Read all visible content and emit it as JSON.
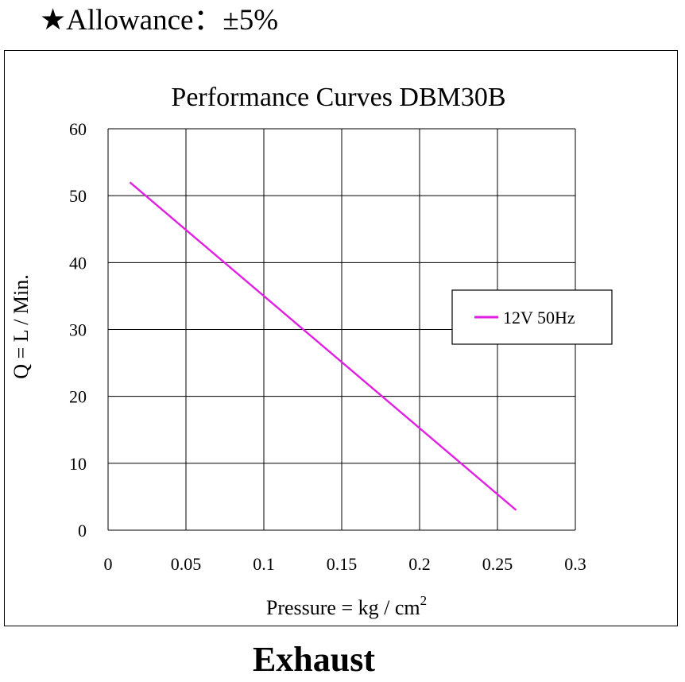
{
  "header": {
    "allowance_text": "★Allowance：±5%"
  },
  "footer": {
    "mode_label": "Exhaust"
  },
  "colors": {
    "series": "#e21ee2",
    "grid": "#000000",
    "background": "#ffffff"
  },
  "chart_data": {
    "type": "line",
    "title": "Performance  Curves  DBM30B",
    "xlabel": "Pressure = kg / cm",
    "xlabel_superscript": "2",
    "ylabel": "Q = L / Min.",
    "xlim": [
      0,
      0.3
    ],
    "ylim": [
      0,
      60
    ],
    "xticks": [
      0,
      0.05,
      0.1,
      0.15,
      0.2,
      0.25,
      0.3
    ],
    "xtick_labels": [
      "0",
      "0.05",
      "0.1",
      "0.15",
      "0.2",
      "0.25",
      "0.3"
    ],
    "yticks": [
      0,
      10,
      20,
      30,
      40,
      50,
      60
    ],
    "ytick_labels": [
      "0",
      "10",
      "20",
      "30",
      "40",
      "50",
      "60"
    ],
    "grid": true,
    "legend": "right",
    "series": [
      {
        "name": "12V 50Hz",
        "x": [
          0.014,
          0.262
        ],
        "y": [
          52,
          3
        ]
      }
    ]
  }
}
